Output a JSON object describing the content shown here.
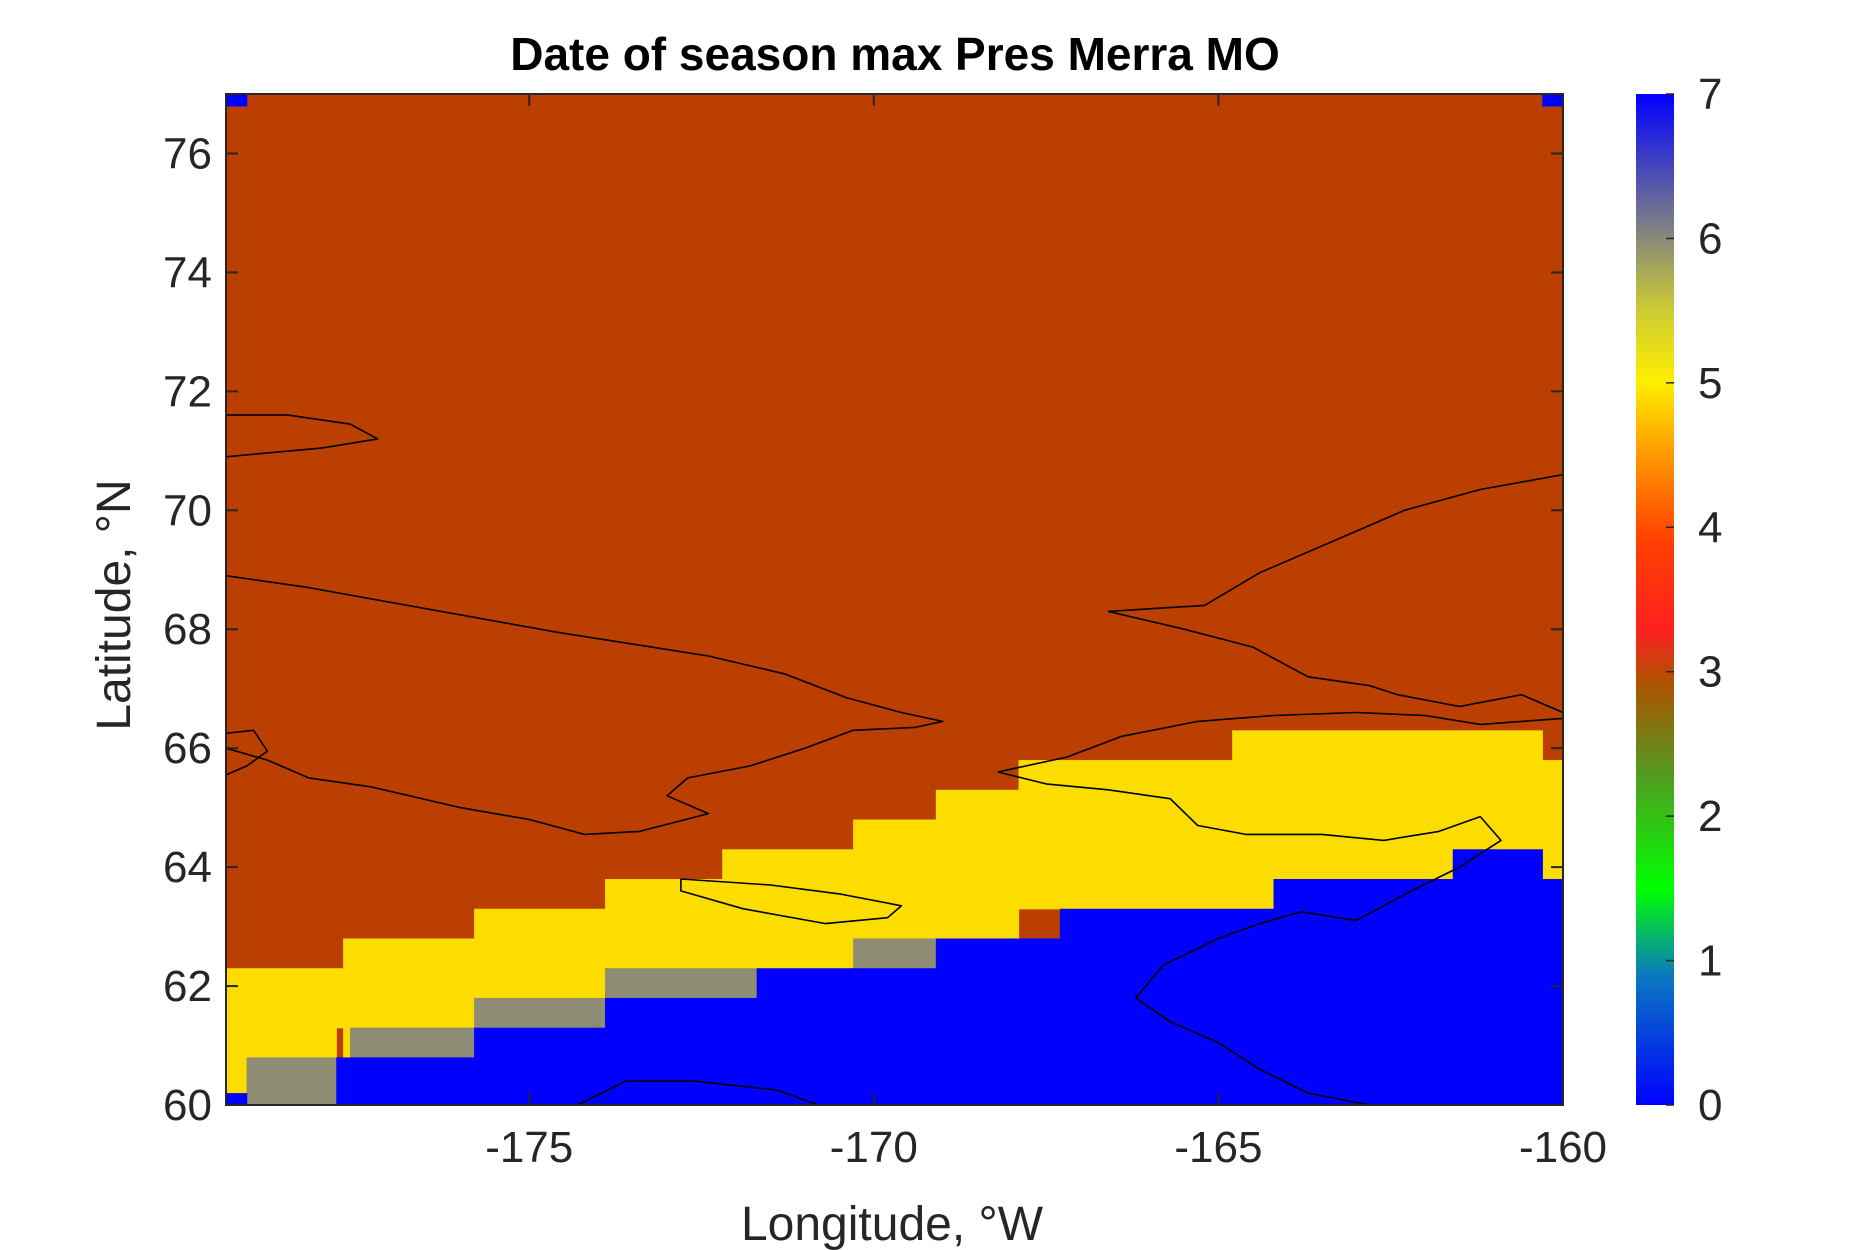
{
  "chart_data": {
    "type": "heatmap",
    "title": "Date of season max Pres Merra MO",
    "xlabel": "Longitude, °W",
    "ylabel": "Latitude, °N",
    "xlim": [
      -179.4,
      -160
    ],
    "ylim": [
      60,
      77
    ],
    "xticks": [
      -175,
      -170,
      -165,
      -160
    ],
    "yticks": [
      60,
      62,
      64,
      66,
      68,
      70,
      72,
      74,
      76
    ],
    "colorbar": {
      "range": [
        0,
        7
      ],
      "ticks": [
        0,
        1,
        2,
        3,
        4,
        5,
        6,
        7
      ],
      "stops": [
        {
          "v": 0,
          "c": "#0000ff"
        },
        {
          "v": 0.9,
          "c": "#0a7abf"
        },
        {
          "v": 1.5,
          "c": "#00ff00"
        },
        {
          "v": 2.3,
          "c": "#559922"
        },
        {
          "v": 2.9,
          "c": "#aa5500"
        },
        {
          "v": 3.3,
          "c": "#ff2020"
        },
        {
          "v": 3.9,
          "c": "#ff4000"
        },
        {
          "v": 4.5,
          "c": "#ff9800"
        },
        {
          "v": 5.0,
          "c": "#ffee00"
        },
        {
          "v": 5.5,
          "c": "#cccc33"
        },
        {
          "v": 6.0,
          "c": "#8a8a7a"
        },
        {
          "v": 7.0,
          "c": "#0000ff"
        }
      ]
    },
    "value_colors": {
      "3": "#bb3f00",
      "5": "#fddd00",
      "6": "#8e8c72",
      "7": "#0000ff"
    },
    "regions": [
      {
        "value": 3,
        "lon": [
          -179.4,
          -160
        ],
        "lat": [
          60,
          77
        ]
      },
      {
        "value": 5,
        "lon": [
          -179.4,
          -177.8
        ],
        "lat": [
          60.2,
          62.3
        ]
      },
      {
        "value": 5,
        "lon": [
          -177.8,
          -177.7
        ],
        "lat": [
          61.3,
          62.3
        ]
      },
      {
        "value": 5,
        "lon": [
          -177.7,
          -175.8
        ],
        "lat": [
          60.8,
          62.8
        ]
      },
      {
        "value": 5,
        "lon": [
          -175.8,
          -173.9
        ],
        "lat": [
          61.3,
          63.3
        ]
      },
      {
        "value": 5,
        "lon": [
          -173.9,
          -172.2
        ],
        "lat": [
          61.8,
          63.8
        ]
      },
      {
        "value": 5,
        "lon": [
          -172.2,
          -170.3
        ],
        "lat": [
          62.3,
          64.3
        ]
      },
      {
        "value": 5,
        "lon": [
          -170.3,
          -169.1
        ],
        "lat": [
          62.8,
          64.8
        ]
      },
      {
        "value": 5,
        "lon": [
          -169.1,
          -167.9
        ],
        "lat": [
          62.8,
          65.3
        ]
      },
      {
        "value": 5,
        "lon": [
          -167.9,
          -167.3
        ],
        "lat": [
          63.3,
          65.8
        ]
      },
      {
        "value": 5,
        "lon": [
          -167.3,
          -164.8
        ],
        "lat": [
          63.3,
          65.8
        ]
      },
      {
        "value": 5,
        "lon": [
          -164.8,
          -164.2
        ],
        "lat": [
          63.3,
          66.3
        ]
      },
      {
        "value": 5,
        "lon": [
          -164.2,
          -161.6
        ],
        "lat": [
          63.8,
          66.3
        ]
      },
      {
        "value": 5,
        "lon": [
          -161.6,
          -160.3
        ],
        "lat": [
          64.3,
          66.3
        ]
      },
      {
        "value": 5,
        "lon": [
          -160.3,
          -160
        ],
        "lat": [
          63.8,
          65.8
        ]
      },
      {
        "value": 6,
        "lon": [
          -179.1,
          -177.8
        ],
        "lat": [
          60,
          60.8
        ]
      },
      {
        "value": 6,
        "lon": [
          -177.6,
          -175.8
        ],
        "lat": [
          60.8,
          61.3
        ]
      },
      {
        "value": 6,
        "lon": [
          -175.8,
          -173.9
        ],
        "lat": [
          61.3,
          61.8
        ]
      },
      {
        "value": 6,
        "lon": [
          -173.9,
          -171.7
        ],
        "lat": [
          61.8,
          62.3
        ]
      },
      {
        "value": 6,
        "lon": [
          -170.3,
          -169.1
        ],
        "lat": [
          62.3,
          62.8
        ]
      },
      {
        "value": 7,
        "lon": [
          -179.4,
          -179.1
        ],
        "lat": [
          60,
          60.2
        ]
      },
      {
        "value": 7,
        "lon": [
          -177.8,
          -175.8
        ],
        "lat": [
          60,
          60.8
        ]
      },
      {
        "value": 7,
        "lon": [
          -175.8,
          -173.9
        ],
        "lat": [
          60,
          61.3
        ]
      },
      {
        "value": 7,
        "lon": [
          -173.9,
          -172.5
        ],
        "lat": [
          60,
          61.8
        ]
      },
      {
        "value": 7,
        "lon": [
          -172.5,
          -171.7
        ],
        "lat": [
          60,
          61.8
        ]
      },
      {
        "value": 7,
        "lon": [
          -171.7,
          -170.3
        ],
        "lat": [
          60,
          62.3
        ]
      },
      {
        "value": 7,
        "lon": [
          -170.3,
          -169.1
        ],
        "lat": [
          60,
          62.3
        ]
      },
      {
        "value": 7,
        "lon": [
          -169.1,
          -167.3
        ],
        "lat": [
          60,
          62.8
        ]
      },
      {
        "value": 7,
        "lon": [
          -167.3,
          -164.2
        ],
        "lat": [
          60,
          63.3
        ]
      },
      {
        "value": 7,
        "lon": [
          -164.2,
          -161.6
        ],
        "lat": [
          60,
          63.8
        ]
      },
      {
        "value": 7,
        "lon": [
          -161.6,
          -160.3
        ],
        "lat": [
          60,
          64.3
        ]
      },
      {
        "value": 7,
        "lon": [
          -160.3,
          -160
        ],
        "lat": [
          60,
          63.8
        ]
      },
      {
        "value": 7,
        "lon": [
          -179.4,
          -179.1
        ],
        "lat": [
          76.8,
          77
        ]
      },
      {
        "value": 7,
        "lon": [
          -160.3,
          -160
        ],
        "lat": [
          76.8,
          77
        ]
      }
    ],
    "coastlines": [
      [
        [
          -179.4,
          71.6
        ],
        [
          -178.5,
          71.6
        ],
        [
          -177.6,
          71.45
        ],
        [
          -177.2,
          71.2
        ],
        [
          -178.0,
          71.05
        ],
        [
          -179.4,
          70.9
        ]
      ],
      [
        [
          -179.4,
          68.9
        ],
        [
          -178.2,
          68.7
        ],
        [
          -177.0,
          68.45
        ],
        [
          -175.8,
          68.2
        ],
        [
          -174.6,
          67.95
        ],
        [
          -173.5,
          67.75
        ],
        [
          -172.4,
          67.55
        ],
        [
          -171.3,
          67.25
        ],
        [
          -170.4,
          66.85
        ],
        [
          -169.6,
          66.6
        ],
        [
          -169.0,
          66.45
        ],
        [
          -169.4,
          66.35
        ],
        [
          -170.3,
          66.3
        ],
        [
          -171.0,
          66.0
        ],
        [
          -171.8,
          65.7
        ],
        [
          -172.7,
          65.5
        ],
        [
          -173.0,
          65.2
        ],
        [
          -172.4,
          64.9
        ],
        [
          -173.4,
          64.6
        ],
        [
          -174.2,
          64.55
        ],
        [
          -175.0,
          64.8
        ],
        [
          -176.0,
          65.0
        ],
        [
          -177.3,
          65.35
        ],
        [
          -178.2,
          65.5
        ],
        [
          -178.8,
          65.8
        ],
        [
          -179.4,
          66.0
        ]
      ],
      [
        [
          -179.4,
          66.25
        ],
        [
          -179.0,
          66.3
        ],
        [
          -178.8,
          65.95
        ],
        [
          -179.1,
          65.7
        ],
        [
          -179.4,
          65.55
        ]
      ],
      [
        [
          -172.8,
          63.8
        ],
        [
          -171.5,
          63.7
        ],
        [
          -170.5,
          63.55
        ],
        [
          -169.6,
          63.35
        ],
        [
          -169.8,
          63.15
        ],
        [
          -170.7,
          63.05
        ],
        [
          -171.9,
          63.3
        ],
        [
          -172.8,
          63.6
        ],
        [
          -172.8,
          63.8
        ]
      ],
      [
        [
          -168.2,
          65.6
        ],
        [
          -167.2,
          65.85
        ],
        [
          -166.4,
          66.2
        ],
        [
          -165.3,
          66.45
        ],
        [
          -164.2,
          66.55
        ],
        [
          -163.0,
          66.6
        ],
        [
          -162.0,
          66.55
        ],
        [
          -161.2,
          66.4
        ],
        [
          -160.0,
          66.5
        ]
      ],
      [
        [
          -168.2,
          65.6
        ],
        [
          -167.5,
          65.4
        ],
        [
          -166.6,
          65.3
        ],
        [
          -165.7,
          65.15
        ],
        [
          -165.3,
          64.7
        ],
        [
          -164.6,
          64.55
        ],
        [
          -163.5,
          64.55
        ],
        [
          -162.6,
          64.45
        ],
        [
          -161.8,
          64.6
        ],
        [
          -161.2,
          64.85
        ],
        [
          -160.9,
          64.45
        ],
        [
          -161.5,
          64.0
        ],
        [
          -162.2,
          63.6
        ],
        [
          -163.0,
          63.1
        ],
        [
          -163.8,
          63.25
        ],
        [
          -164.4,
          63.05
        ],
        [
          -165.0,
          62.8
        ],
        [
          -165.8,
          62.35
        ],
        [
          -166.2,
          61.8
        ],
        [
          -165.7,
          61.4
        ],
        [
          -165.0,
          61.05
        ],
        [
          -164.4,
          60.6
        ],
        [
          -163.7,
          60.2
        ],
        [
          -162.8,
          60.0
        ]
      ],
      [
        [
          -166.6,
          68.3
        ],
        [
          -165.2,
          68.4
        ],
        [
          -164.4,
          68.95
        ],
        [
          -163.2,
          69.55
        ],
        [
          -162.3,
          70.0
        ],
        [
          -161.2,
          70.35
        ],
        [
          -160.0,
          70.6
        ]
      ],
      [
        [
          -166.6,
          68.3
        ],
        [
          -165.5,
          68.0
        ],
        [
          -164.5,
          67.7
        ],
        [
          -163.7,
          67.2
        ],
        [
          -162.8,
          67.05
        ],
        [
          -162.4,
          66.9
        ],
        [
          -161.5,
          66.7
        ],
        [
          -160.6,
          66.9
        ],
        [
          -160.0,
          66.6
        ]
      ],
      [
        [
          -174.3,
          60.0
        ],
        [
          -173.6,
          60.4
        ],
        [
          -172.6,
          60.4
        ],
        [
          -171.4,
          60.25
        ],
        [
          -170.8,
          60.0
        ]
      ]
    ]
  }
}
